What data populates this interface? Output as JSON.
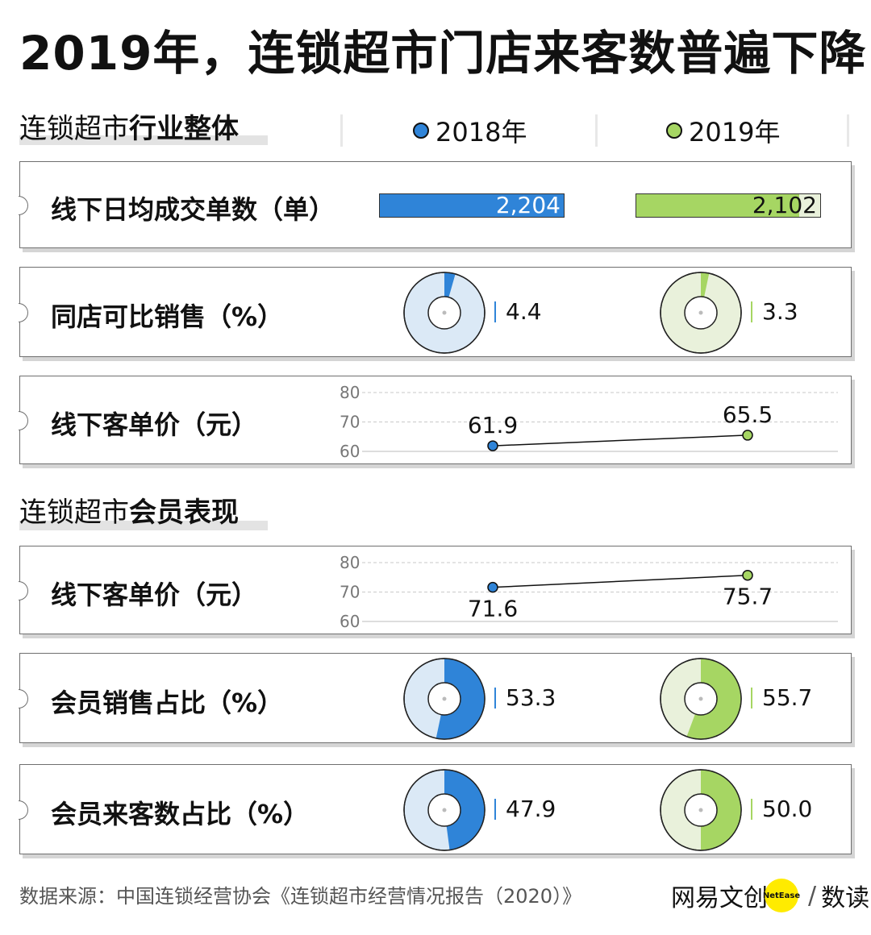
{
  "title": "2019年，连锁超市门店来客数普遍下降",
  "section1": {
    "prefix": "连锁超市",
    "bold": "行业整体"
  },
  "section2": {
    "prefix": "连锁超市",
    "bold": "会员表现"
  },
  "legend": [
    {
      "label": "2018年",
      "color": "#2f84d8"
    },
    {
      "label": "2019年",
      "color": "#a6d663"
    }
  ],
  "colors": {
    "blue": "#2f84d8",
    "blue_light": "#dbe9f6",
    "green": "#a6d663",
    "green_light": "#e9f1db",
    "card_border": "#6f6f6f"
  },
  "chart_data": [
    {
      "type": "bar",
      "label": "线下日均成交单数（单）",
      "series": [
        {
          "name": "2018年",
          "value": 2204,
          "display": "2,204"
        },
        {
          "name": "2019年",
          "value": 2102,
          "display": "2,102"
        }
      ]
    },
    {
      "type": "pie",
      "label": "同店可比销售（%）",
      "series": [
        {
          "name": "2018年",
          "value": 4.4,
          "display": "4.4"
        },
        {
          "name": "2019年",
          "value": 3.3,
          "display": "3.3"
        }
      ]
    },
    {
      "type": "line",
      "label": "线下客单价（元）",
      "yticks": [
        "80",
        "70",
        "60"
      ],
      "ylim": [
        60,
        80
      ],
      "series": [
        {
          "name": "2018年",
          "value": 61.9,
          "display": "61.9"
        },
        {
          "name": "2019年",
          "value": 65.5,
          "display": "65.5"
        }
      ]
    },
    {
      "type": "line",
      "label": "线下客单价（元）",
      "yticks": [
        "80",
        "70",
        "60"
      ],
      "ylim": [
        60,
        80
      ],
      "series": [
        {
          "name": "2018年",
          "value": 71.6,
          "display": "71.6"
        },
        {
          "name": "2019年",
          "value": 75.7,
          "display": "75.7"
        }
      ]
    },
    {
      "type": "pie",
      "label": "会员销售占比（%）",
      "series": [
        {
          "name": "2018年",
          "value": 53.3,
          "display": "53.3"
        },
        {
          "name": "2019年",
          "value": 55.7,
          "display": "55.7"
        }
      ]
    },
    {
      "type": "pie",
      "label": "会员来客数占比（%）",
      "series": [
        {
          "name": "2018年",
          "value": 47.9,
          "display": "47.9"
        },
        {
          "name": "2019年",
          "value": 50.0,
          "display": "50.0"
        }
      ]
    }
  ],
  "source": "数据来源：中国连锁经营协会《连锁超市经营情况报告（2020）》",
  "logo": {
    "brand": "网易文创",
    "badge": "NetEase",
    "slash": "/",
    "product": "数读"
  }
}
